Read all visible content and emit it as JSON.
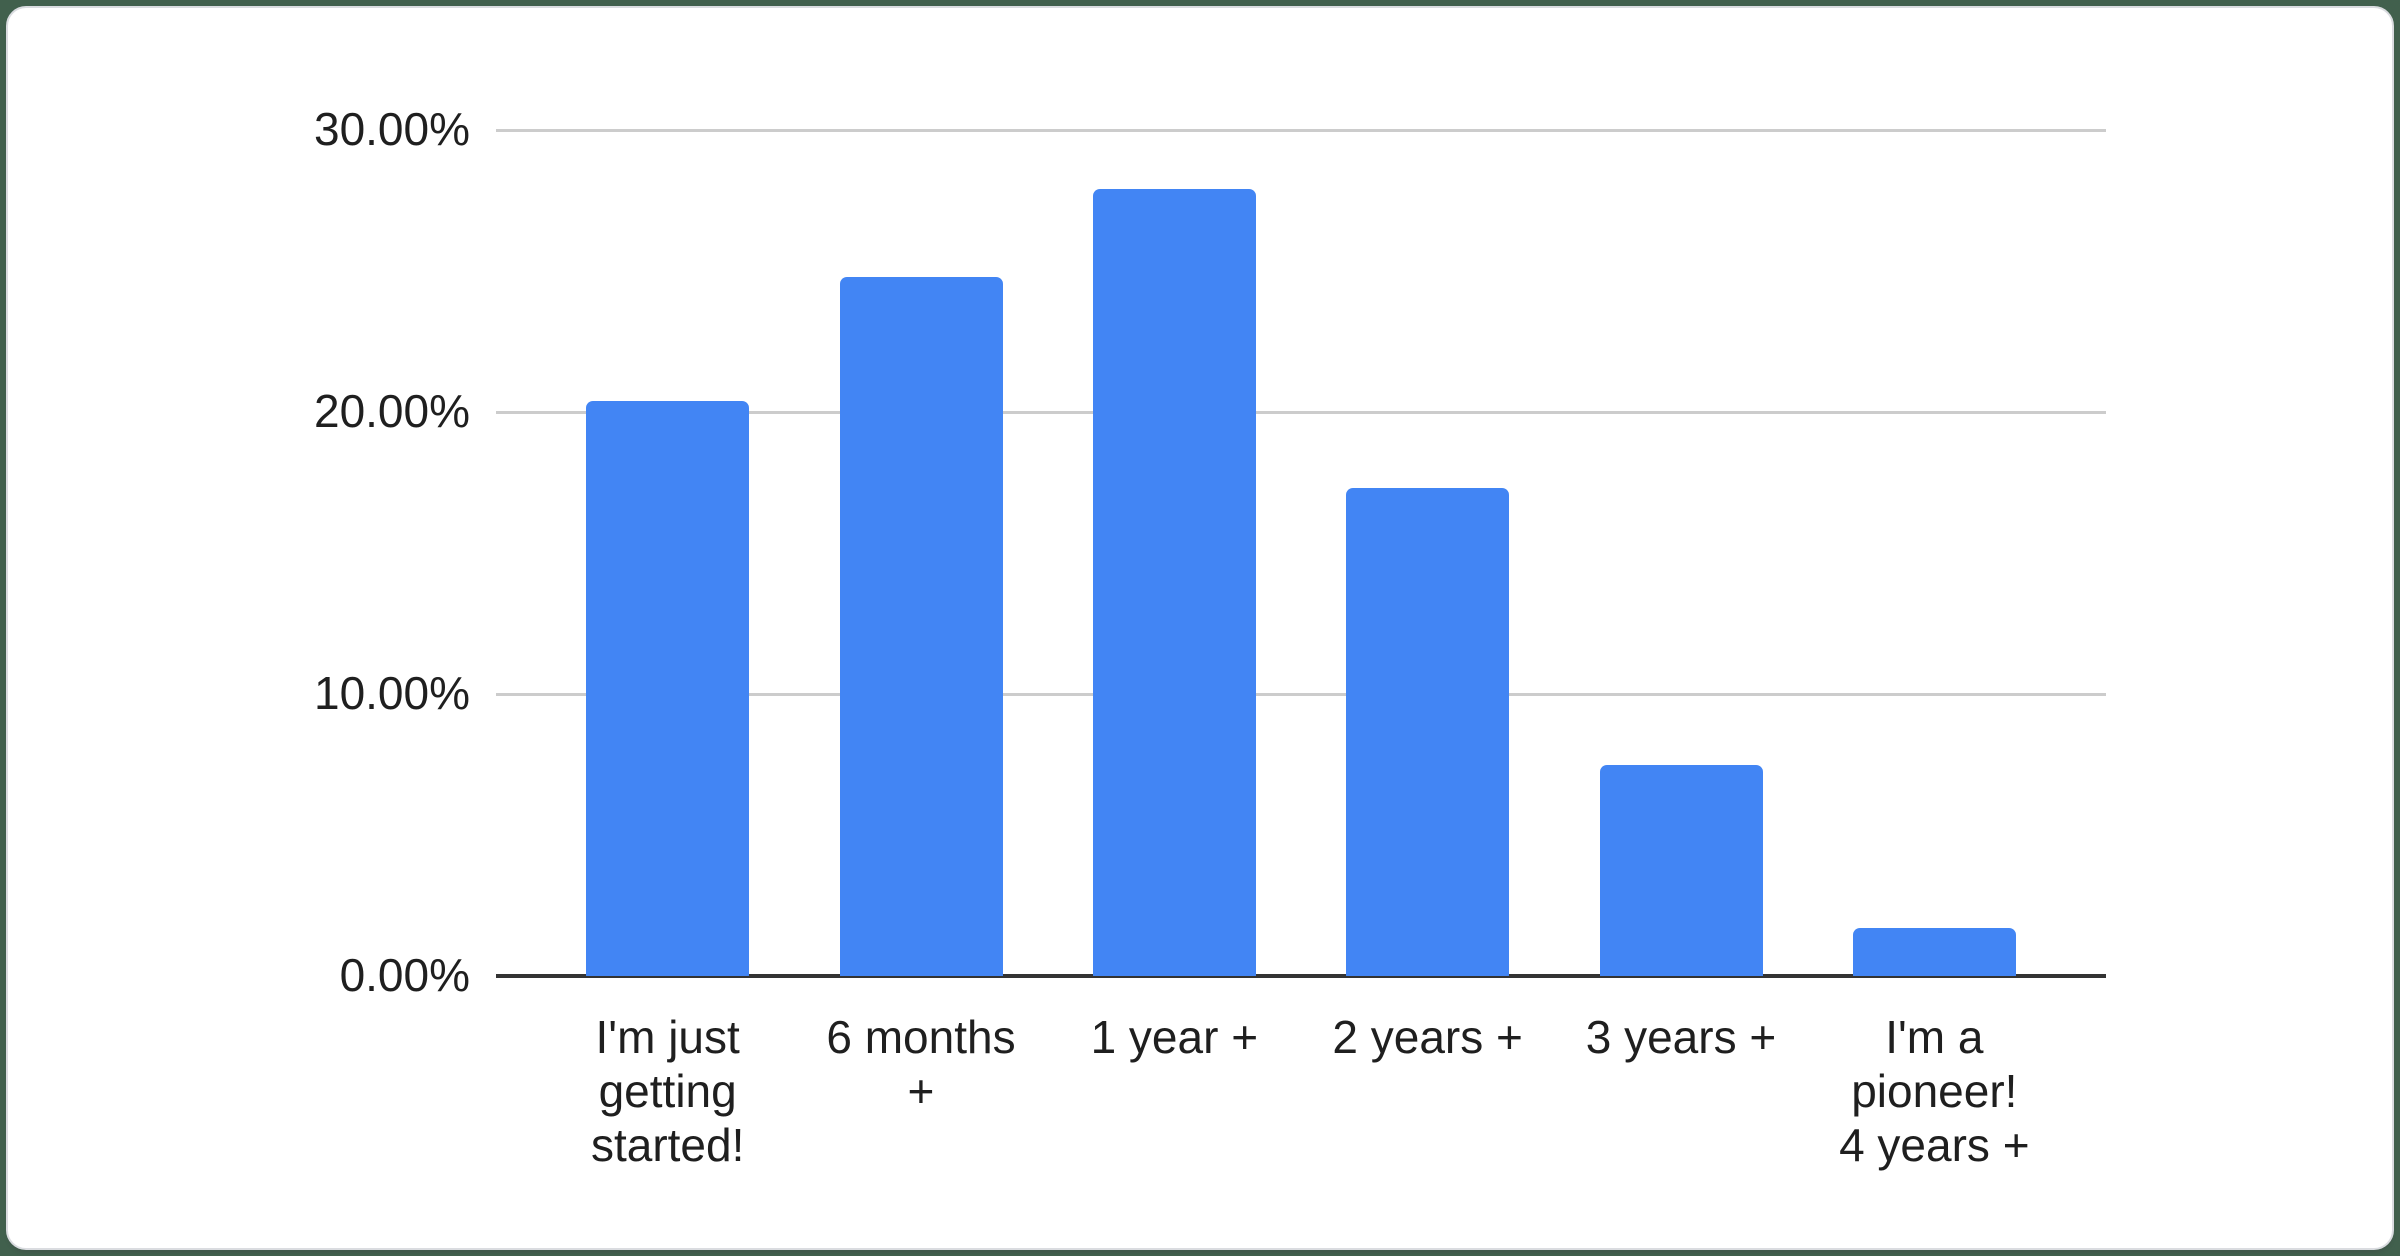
{
  "page": {
    "background_color": "#41604d",
    "card_background_color": "#ffffff",
    "card_border_color": "#dadce0"
  },
  "chart_data": {
    "type": "bar",
    "categories": [
      "I'm just getting started!",
      "6 months +",
      "1 year +",
      "2 years +",
      "3 years +",
      "I'm a pioneer! 4 years +"
    ],
    "category_label_lines": [
      [
        "I'm just",
        "getting",
        "started!"
      ],
      [
        "6 months",
        "+"
      ],
      [
        "1 year +"
      ],
      [
        "2 years +"
      ],
      [
        "3 years +"
      ],
      [
        "I'm a",
        "pioneer!",
        "4 years +"
      ]
    ],
    "values": [
      20.4,
      24.8,
      27.9,
      17.3,
      7.5,
      1.7
    ],
    "unit": "%",
    "y_ticks": [
      {
        "value": 30,
        "label": "30.00%"
      },
      {
        "value": 20,
        "label": "20.00%"
      },
      {
        "value": 10,
        "label": "10.00%"
      },
      {
        "value": 0,
        "label": "0.00%"
      }
    ],
    "ylim": [
      0,
      30
    ],
    "grid": true,
    "legend": "none",
    "bar_color": "#4285F4",
    "gridline_color": "#cccccc",
    "axis_line_color": "#333333",
    "label_color": "#1f1f1f"
  }
}
